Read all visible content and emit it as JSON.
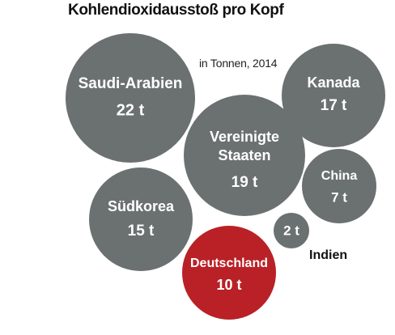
{
  "chart_data": {
    "type": "bubble",
    "title": "Kohlendioxidausstoß pro Kopf",
    "subtitle": "in Tonnen, 2014",
    "unit": "t",
    "colors": {
      "default_bubble": "#6b7171",
      "highlight_bubble": "#b92126",
      "bubble_text": "#ffffff",
      "outside_label": "#111111"
    },
    "items": [
      {
        "country": "Saudi-Arabien",
        "value": 22,
        "value_label": "22 t",
        "highlight": false,
        "label_position": "inside"
      },
      {
        "country": "Kanada",
        "value": 17,
        "value_label": "17 t",
        "highlight": false,
        "label_position": "inside"
      },
      {
        "country": "Vereinigte Staaten",
        "value": 19,
        "value_label": "19 t",
        "highlight": false,
        "label_position": "inside"
      },
      {
        "country": "China",
        "value": 7,
        "value_label": "7 t",
        "highlight": false,
        "label_position": "inside"
      },
      {
        "country": "Südkorea",
        "value": 15,
        "value_label": "15 t",
        "highlight": false,
        "label_position": "inside"
      },
      {
        "country": "Indien",
        "value": 2,
        "value_label": "2 t",
        "highlight": false,
        "label_position": "outside"
      },
      {
        "country": "Deutschland",
        "value": 10,
        "value_label": "10 t",
        "highlight": true,
        "label_position": "inside"
      }
    ]
  }
}
